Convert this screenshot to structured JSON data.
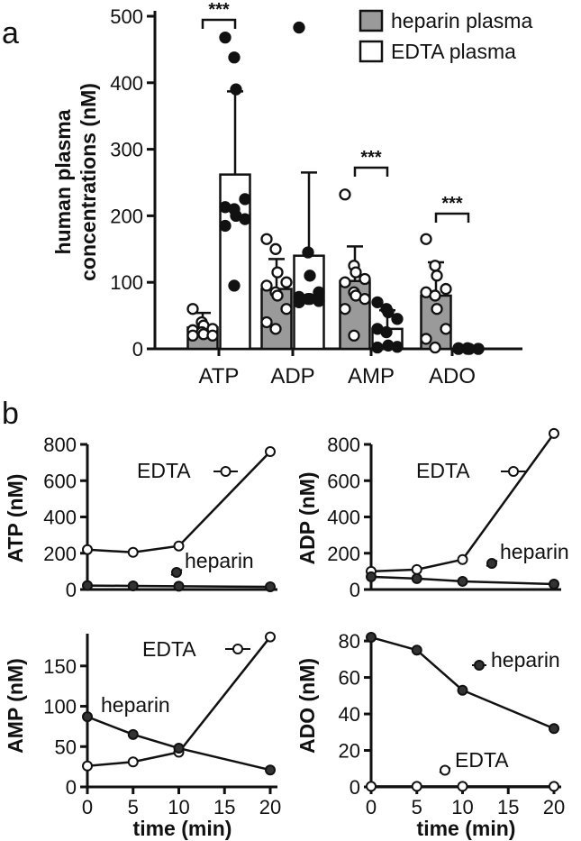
{
  "panel_labels": {
    "a": "a",
    "b": "b"
  },
  "chart_data": [
    {
      "type": "bar",
      "panel": "a",
      "ylabel_lines": [
        "human plasma",
        "concentrations (nM)"
      ],
      "ylim": [
        0,
        500
      ],
      "yticks": [
        0,
        100,
        200,
        300,
        400,
        500
      ],
      "categories": [
        "ATP",
        "ADP",
        "AMP",
        "ADO"
      ],
      "legend": {
        "placement": "top-right"
      },
      "series": [
        {
          "name": "heparin plasma",
          "color": "#9a9a9a",
          "point_style": "open",
          "values": [
            32,
            90,
            102,
            80
          ],
          "sd": [
            22,
            45,
            52,
            50
          ],
          "points": [
            [
              60,
              40,
              35,
              30,
              28,
              25,
              22,
              20,
              20
            ],
            [
              165,
              150,
              115,
              100,
              95,
              85,
              80,
              60,
              40,
              30
            ],
            [
              232,
              125,
              115,
              105,
              100,
              85,
              80,
              75,
              60,
              20
            ],
            [
              165,
              125,
              110,
              90,
              85,
              80,
              60,
              30,
              15,
              2
            ]
          ]
        },
        {
          "name": "EDTA plasma",
          "color": "#ffffff",
          "point_style": "filled",
          "values": [
            262,
            140,
            30,
            0
          ],
          "sd": [
            125,
            125,
            28,
            1
          ],
          "points": [
            [
              468,
              438,
              390,
              225,
              213,
              210,
              200,
              195,
              185,
              95
            ],
            [
              483,
              145,
              110,
              85,
              78,
              75,
              75,
              72,
              70
            ],
            [
              70,
              60,
              55,
              45,
              30,
              25,
              5,
              3,
              2
            ],
            [
              1,
              1,
              0,
              0,
              0,
              0,
              0,
              0,
              0
            ]
          ]
        }
      ],
      "significance": [
        {
          "category": "ATP",
          "label": "***"
        },
        {
          "category": "AMP",
          "label": "***"
        },
        {
          "category": "ADO",
          "label": "***"
        }
      ]
    },
    {
      "type": "line",
      "panel": "b",
      "ylabel": "ATP (nM)",
      "xlim": [
        0,
        20
      ],
      "ylim": [
        0,
        800
      ],
      "yticks": [
        0,
        200,
        400,
        600,
        800
      ],
      "x": [
        0,
        5,
        10,
        20
      ],
      "series": [
        {
          "name": "EDTA",
          "marker": "open",
          "values": [
            220,
            205,
            240,
            760
          ]
        },
        {
          "name": "heparin",
          "marker": "filled",
          "values": [
            22,
            20,
            18,
            15
          ]
        }
      ]
    },
    {
      "type": "line",
      "panel": "b",
      "ylabel": "ADP (nM)",
      "xlim": [
        0,
        20
      ],
      "ylim": [
        0,
        800
      ],
      "yticks": [
        0,
        200,
        400,
        600,
        800
      ],
      "x": [
        0,
        5,
        10,
        20
      ],
      "series": [
        {
          "name": "EDTA",
          "marker": "open",
          "values": [
            100,
            110,
            165,
            860
          ]
        },
        {
          "name": "heparin",
          "marker": "filled",
          "values": [
            70,
            60,
            45,
            30
          ]
        }
      ]
    },
    {
      "type": "line",
      "panel": "b",
      "ylabel": "AMP (nM)",
      "xlabel": "time (min)",
      "xlim": [
        0,
        20
      ],
      "ylim": [
        0,
        190
      ],
      "yticks": [
        0,
        50,
        100,
        150
      ],
      "xticks": [
        0,
        5,
        10,
        15,
        20
      ],
      "x": [
        0,
        5,
        10,
        20
      ],
      "series": [
        {
          "name": "EDTA",
          "marker": "open",
          "values": [
            26,
            31,
            43,
            186
          ]
        },
        {
          "name": "heparin",
          "marker": "filled",
          "values": [
            87,
            65,
            48,
            21
          ]
        }
      ]
    },
    {
      "type": "line",
      "panel": "b",
      "ylabel": "ADO (nM)",
      "xlabel": "time (min)",
      "xlim": [
        0,
        20
      ],
      "ylim": [
        0,
        84
      ],
      "yticks": [
        0,
        20,
        40,
        60,
        80
      ],
      "xticks": [
        0,
        5,
        10,
        15,
        20
      ],
      "x": [
        0,
        5,
        10,
        20
      ],
      "series": [
        {
          "name": "heparin",
          "marker": "filled",
          "values": [
            82,
            75,
            53,
            32
          ]
        },
        {
          "name": "EDTA",
          "marker": "open",
          "values": [
            0.3,
            0.3,
            0.3,
            0.3
          ]
        }
      ]
    }
  ]
}
